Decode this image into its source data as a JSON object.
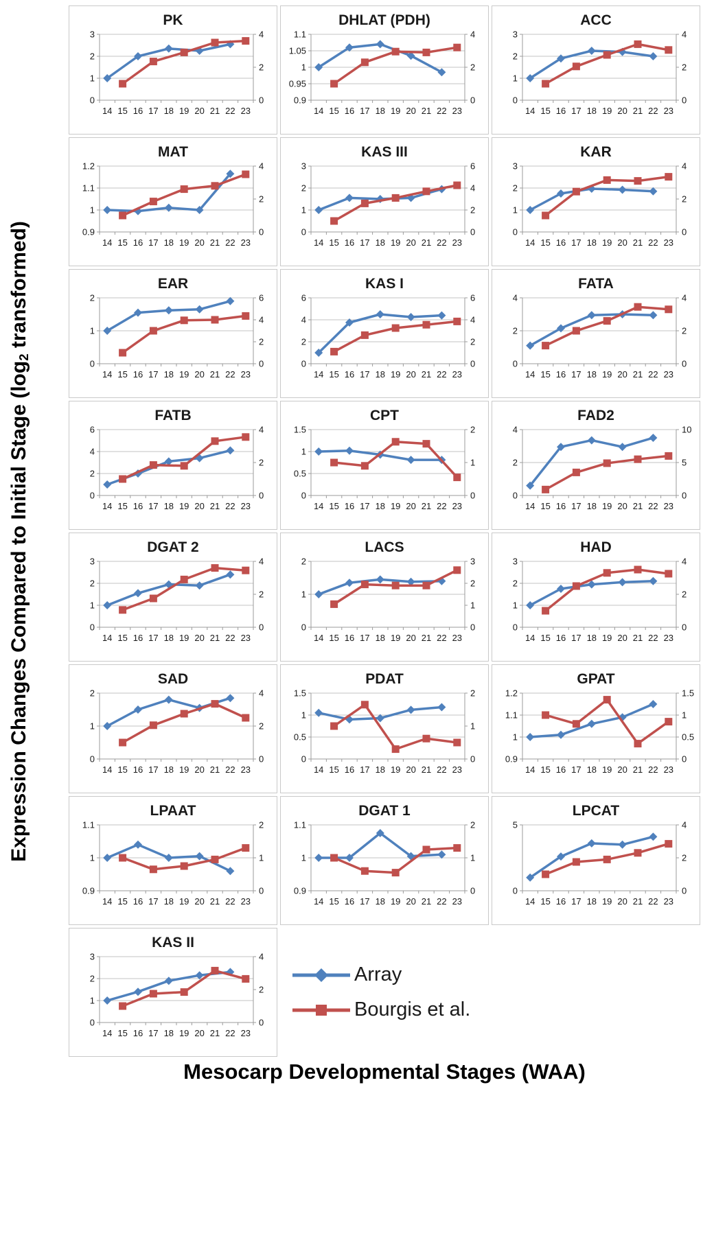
{
  "figure": {
    "y_axis_label": {
      "prefix": "Expression Changes Compared to Initial Stage (log",
      "sub": "2",
      "suffix": " transformed)"
    },
    "x_axis_label": "Mesocarp Developmental Stages (WAA)"
  },
  "legend": {
    "items": [
      {
        "label": "Array",
        "marker": "diamond",
        "color": "#4f81bd"
      },
      {
        "label": "Bourgis et al.",
        "marker": "square",
        "color": "#c0504d"
      }
    ]
  },
  "chart_data": {
    "type": "line",
    "x_categories": [
      14,
      15,
      16,
      17,
      18,
      19,
      20,
      21,
      22,
      23
    ],
    "series": [
      {
        "name": "Array",
        "color": "#4f81bd",
        "marker": "diamond",
        "axis": "left",
        "x": [
          14,
          16,
          18,
          20,
          22
        ]
      },
      {
        "name": "Bourgis et al.",
        "color": "#c0504d",
        "marker": "square",
        "axis": "right",
        "x": [
          15,
          17,
          19,
          21,
          23
        ]
      }
    ],
    "panels": [
      {
        "title": "PK",
        "left_ticks": [
          0,
          1,
          2,
          3
        ],
        "right_ticks": [
          0,
          2,
          4
        ],
        "array_y": [
          1,
          2,
          2.35,
          2.25,
          2.55
        ],
        "bourgis_y": [
          1,
          2.35,
          2.9,
          3.5,
          3.6
        ]
      },
      {
        "title": "DHLAT (PDH)",
        "left_ticks": [
          0.9,
          0.95,
          1,
          1.05,
          1.1
        ],
        "right_ticks": [
          0,
          2,
          4
        ],
        "array_y": [
          1,
          1.06,
          1.07,
          1.035,
          0.985
        ],
        "bourgis_y": [
          1,
          2.3,
          2.95,
          2.9,
          3.2
        ]
      },
      {
        "title": "ACC",
        "left_ticks": [
          0,
          1,
          2,
          3
        ],
        "right_ticks": [
          0,
          2,
          4
        ],
        "array_y": [
          1,
          1.9,
          2.25,
          2.2,
          2
        ],
        "bourgis_y": [
          1,
          2.05,
          2.75,
          3.4,
          3.05
        ]
      },
      {
        "title": "MAT",
        "left_ticks": [
          0.9,
          1,
          1.1,
          1.2
        ],
        "right_ticks": [
          0,
          2,
          4
        ],
        "array_y": [
          1,
          0.995,
          1.01,
          1,
          1.165
        ],
        "bourgis_y": [
          1,
          1.85,
          2.6,
          2.8,
          3.5
        ]
      },
      {
        "title": "KAS III",
        "left_ticks": [
          0,
          1,
          2,
          3
        ],
        "right_ticks": [
          0,
          2,
          4,
          6
        ],
        "array_y": [
          1,
          1.55,
          1.5,
          1.55,
          1.95
        ],
        "bourgis_y": [
          1,
          2.6,
          3.1,
          3.7,
          4.25
        ]
      },
      {
        "title": "KAR",
        "left_ticks": [
          0,
          1,
          2,
          3
        ],
        "right_ticks": [
          0,
          2,
          4
        ],
        "array_y": [
          1,
          1.75,
          1.97,
          1.92,
          1.85
        ],
        "bourgis_y": [
          1,
          2.45,
          3.15,
          3.1,
          3.35
        ]
      },
      {
        "title": "EAR",
        "left_ticks": [
          0,
          1,
          2
        ],
        "right_ticks": [
          0,
          2,
          4,
          6
        ],
        "array_y": [
          1,
          1.55,
          1.62,
          1.65,
          1.9
        ],
        "bourgis_y": [
          1,
          3,
          3.95,
          4,
          4.35
        ]
      },
      {
        "title": "KAS I",
        "left_ticks": [
          0,
          2,
          4,
          6
        ],
        "right_ticks": [
          0,
          2,
          4,
          6
        ],
        "array_y": [
          1,
          3.75,
          4.5,
          4.25,
          4.4
        ],
        "bourgis_y": [
          1.1,
          2.6,
          3.25,
          3.55,
          3.85
        ]
      },
      {
        "title": "FATA",
        "left_ticks": [
          0,
          2,
          4
        ],
        "right_ticks": [
          0,
          2,
          4
        ],
        "array_y": [
          1.1,
          2.15,
          2.95,
          3,
          2.95
        ],
        "bourgis_y": [
          1.1,
          2,
          2.6,
          3.45,
          3.3
        ]
      },
      {
        "title": "FATB",
        "left_ticks": [
          0,
          2,
          4,
          6
        ],
        "right_ticks": [
          0,
          2,
          4
        ],
        "array_y": [
          1,
          2,
          3.1,
          3.4,
          4.1
        ],
        "bourgis_y": [
          1,
          1.85,
          1.8,
          3.3,
          3.55
        ]
      },
      {
        "title": "CPT",
        "left_ticks": [
          0,
          0.5,
          1,
          1.5
        ],
        "right_ticks": [
          0,
          1,
          2
        ],
        "array_y": [
          1,
          1.02,
          0.93,
          0.81,
          0.81
        ],
        "bourgis_y": [
          1,
          0.9,
          1.63,
          1.57,
          0.55
        ]
      },
      {
        "title": "FAD2",
        "left_ticks": [
          0,
          2,
          4
        ],
        "right_ticks": [
          0,
          5,
          10
        ],
        "array_y": [
          0.6,
          2.95,
          3.35,
          2.95,
          3.5
        ],
        "bourgis_y": [
          0.9,
          3.5,
          4.9,
          5.5,
          6
        ]
      },
      {
        "title": "DGAT 2",
        "left_ticks": [
          0,
          1,
          2,
          3
        ],
        "right_ticks": [
          0,
          2,
          4
        ],
        "array_y": [
          1,
          1.55,
          1.95,
          1.9,
          2.4
        ],
        "bourgis_y": [
          1.05,
          1.75,
          2.9,
          3.6,
          3.45
        ]
      },
      {
        "title": "LACS",
        "left_ticks": [
          0,
          1,
          2
        ],
        "right_ticks": [
          0,
          1,
          2,
          3
        ],
        "array_y": [
          1,
          1.35,
          1.45,
          1.38,
          1.4
        ],
        "bourgis_y": [
          1.05,
          1.95,
          1.9,
          1.9,
          2.6
        ]
      },
      {
        "title": "HAD",
        "left_ticks": [
          0,
          1,
          2,
          3
        ],
        "right_ticks": [
          0,
          2,
          4
        ],
        "array_y": [
          1,
          1.75,
          1.95,
          2.05,
          2.1
        ],
        "bourgis_y": [
          1,
          2.5,
          3.3,
          3.5,
          3.25
        ]
      },
      {
        "title": "SAD",
        "left_ticks": [
          0,
          1,
          2
        ],
        "right_ticks": [
          0,
          2,
          4
        ],
        "array_y": [
          1,
          1.5,
          1.8,
          1.55,
          1.85
        ],
        "bourgis_y": [
          1,
          2.05,
          2.75,
          3.35,
          2.5
        ]
      },
      {
        "title": "PDAT",
        "left_ticks": [
          0,
          0.5,
          1,
          1.5
        ],
        "right_ticks": [
          0,
          1,
          2
        ],
        "array_y": [
          1.05,
          0.9,
          0.93,
          1.12,
          1.18
        ],
        "bourgis_y": [
          1,
          1.65,
          0.3,
          0.62,
          0.5
        ]
      },
      {
        "title": "GPAT",
        "left_ticks": [
          0.9,
          1,
          1.1,
          1.2
        ],
        "right_ticks": [
          0,
          0.5,
          1,
          1.5
        ],
        "array_y": [
          1,
          1.01,
          1.06,
          1.09,
          1.15
        ],
        "bourgis_y": [
          1,
          0.8,
          1.35,
          0.35,
          0.85
        ]
      },
      {
        "title": "LPAAT",
        "left_ticks": [
          0.9,
          1,
          1.1
        ],
        "right_ticks": [
          0,
          1,
          2
        ],
        "array_y": [
          1,
          1.04,
          1,
          1.005,
          0.96
        ],
        "bourgis_y": [
          1,
          0.65,
          0.75,
          0.95,
          1.3
        ]
      },
      {
        "title": "DGAT 1",
        "left_ticks": [
          0.9,
          1,
          1.1
        ],
        "right_ticks": [
          0,
          1,
          2
        ],
        "array_y": [
          1,
          1,
          1.075,
          1.005,
          1.01
        ],
        "bourgis_y": [
          1,
          0.6,
          0.55,
          1.25,
          1.3
        ]
      },
      {
        "title": "LPCAT",
        "left_ticks": [
          0,
          5
        ],
        "right_ticks": [
          0,
          2,
          4
        ],
        "array_y": [
          1,
          2.6,
          3.6,
          3.5,
          4.1
        ],
        "bourgis_y": [
          1,
          1.75,
          1.9,
          2.3,
          2.85
        ]
      },
      {
        "title": "KAS II",
        "left_ticks": [
          0,
          1,
          2,
          3
        ],
        "right_ticks": [
          0,
          2,
          4
        ],
        "array_y": [
          1,
          1.4,
          1.9,
          2.15,
          2.3
        ],
        "bourgis_y": [
          1,
          1.75,
          1.85,
          3.15,
          2.65
        ]
      }
    ]
  }
}
